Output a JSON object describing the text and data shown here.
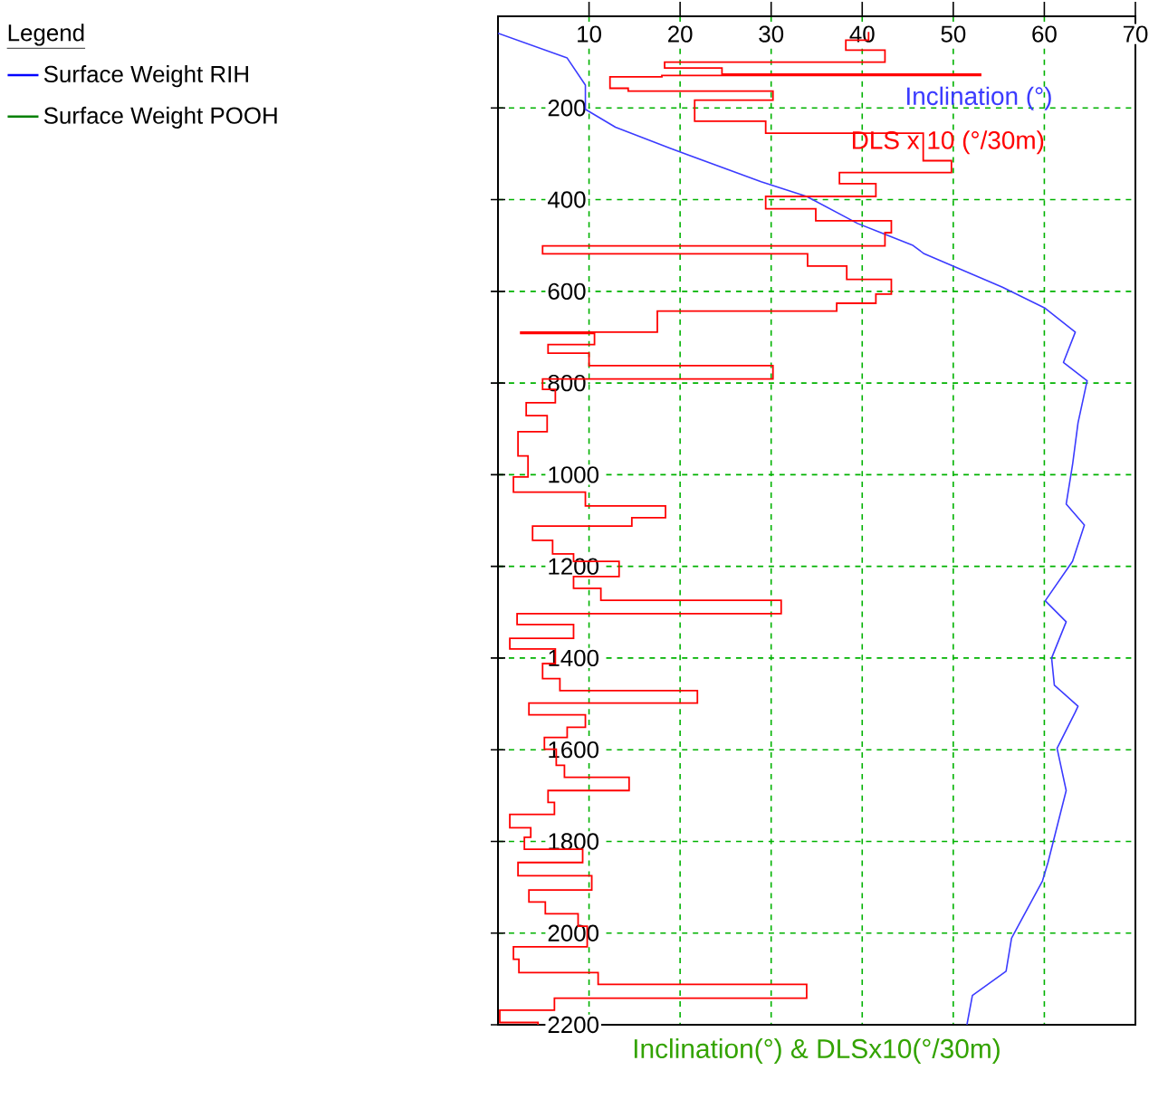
{
  "chart_data": {
    "type": "line",
    "orientation": "horizontal",
    "xlabel": "Inclination(°) & DLSx10(°/30m)",
    "legend_title": "Legend",
    "legend": "top left",
    "grid": true,
    "xlim": [
      0,
      70
    ],
    "xticks": [
      10,
      20,
      30,
      40,
      50,
      60,
      70
    ],
    "ylim": [
      2200,
      0
    ],
    "yticks": [
      200,
      400,
      600,
      800,
      1000,
      1200,
      1400,
      1600,
      1800,
      2000,
      2200
    ],
    "series": [
      {
        "name": "Inclination (°)",
        "color": "#3b3bff",
        "x": [
          37,
          91,
          150,
          203,
          242,
          288,
          361,
          393,
          452,
          499,
          518,
          591,
          637,
          689,
          755,
          795,
          887,
          978,
          1064,
          1110,
          1189,
          1275,
          1321,
          1400,
          1459,
          1505,
          1518,
          1597,
          1689,
          1846,
          1886,
          2011,
          2083,
          2136,
          2200
        ],
        "values": [
          0,
          7.6,
          9.6,
          9.6,
          12.9,
          18.9,
          28.9,
          33.9,
          39.5,
          45.5,
          46.8,
          55.4,
          60.1,
          63.4,
          62.1,
          64.7,
          63.7,
          63.1,
          62.4,
          64.4,
          63.1,
          60.1,
          62.4,
          60.8,
          61.1,
          63.7,
          63.4,
          61.4,
          62.4,
          60.4,
          59.8,
          56.4,
          55.8,
          52.1,
          51.5
        ]
      },
      {
        "name": "DLS x 10 (°/30m)",
        "type": "step",
        "color": "#ff0000",
        "x": [
          34,
          52,
          74,
          100,
          113,
          126,
          129,
          132,
          157,
          163,
          183,
          229,
          255,
          315,
          341,
          365,
          393,
          420,
          446,
          472,
          501,
          518,
          545,
          574,
          606,
          626,
          643,
          689,
          692,
          716,
          735,
          762,
          791,
          814,
          843,
          871,
          906,
          959,
          1005,
          1038,
          1068,
          1094,
          1112,
          1143,
          1173,
          1189,
          1222,
          1248,
          1274,
          1303,
          1327,
          1357,
          1380,
          1412,
          1445,
          1471,
          1498,
          1524,
          1551,
          1573,
          1599,
          1634,
          1660,
          1689,
          1715,
          1741,
          1770,
          1791,
          1817,
          1846,
          1875,
          1906,
          1932,
          1958,
          1985,
          2030,
          2057,
          2086,
          2112,
          2142,
          2168,
          2195
        ],
        "values": [
          40.7,
          38.2,
          42.5,
          18.3,
          24.6,
          53,
          18,
          12.3,
          14.3,
          30.2,
          21.6,
          29.4,
          46.7,
          49.8,
          37.5,
          41.5,
          29.4,
          34.9,
          43.2,
          42.5,
          4.9,
          34,
          38.3,
          43.2,
          41.5,
          37.2,
          17.5,
          2.5,
          10.6,
          5.5,
          10,
          30.2,
          4.9,
          6.3,
          3.1,
          5.4,
          2.2,
          3.3,
          1.7,
          9.6,
          18.4,
          14.7,
          3.8,
          6,
          8.3,
          13.3,
          8.3,
          11.3,
          31.1,
          2.1,
          8.3,
          1.3,
          6.3,
          4.9,
          6.8,
          21.9,
          3.4,
          9.6,
          7.6,
          5.1,
          6.4,
          7.3,
          14.4,
          5.5,
          6.2,
          1.3,
          3.6,
          2.9,
          9.3,
          2.2,
          10.3,
          3.4,
          5.2,
          8.8,
          9.8,
          1.7,
          2.3,
          11,
          33.9,
          6.2,
          0.2,
          4.4
        ]
      },
      {
        "name": "Surface Weight RIH",
        "color": "#0000ff"
      },
      {
        "name": "Surface Weight POOH",
        "color": "#008000"
      }
    ]
  }
}
